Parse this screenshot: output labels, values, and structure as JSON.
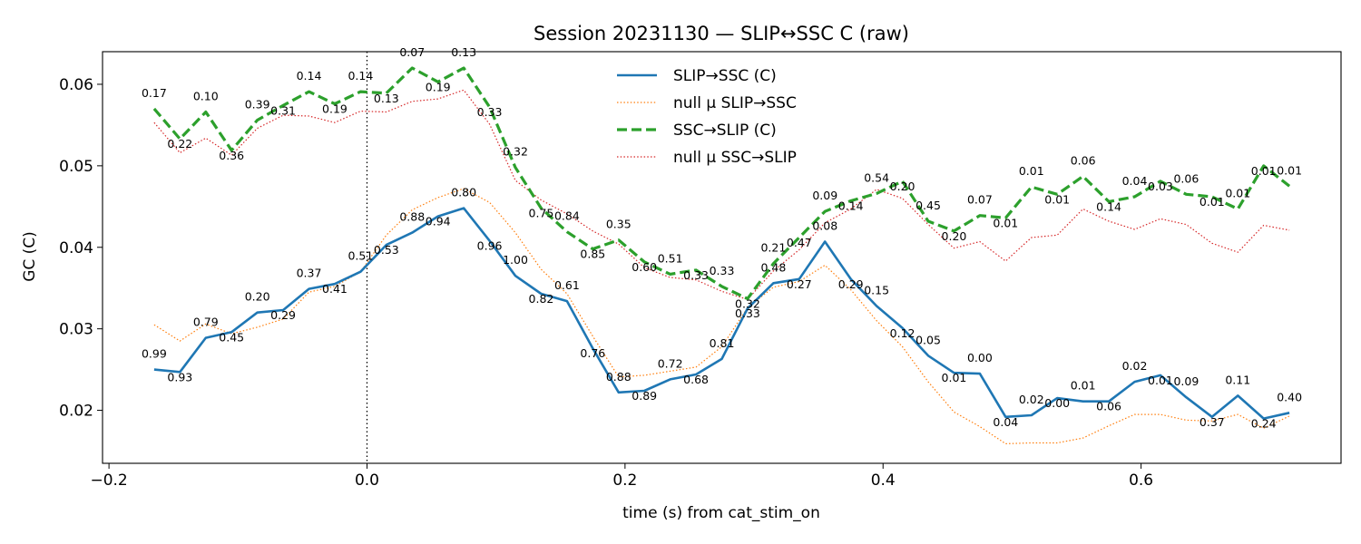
{
  "chart_data": {
    "type": "line",
    "title": "Session 20231130 — SLIP↔SSC C (raw)",
    "xlabel": "time (s) from cat_stim_on",
    "ylabel": "GC (C)",
    "xlim": [
      -0.205,
      0.755
    ],
    "ylim": [
      0.0135,
      0.064
    ],
    "xticks": [
      -0.2,
      0.0,
      0.2,
      0.4,
      0.6
    ],
    "xtick_labels": [
      "−0.2",
      "0.0",
      "0.2",
      "0.4",
      "0.6"
    ],
    "yticks": [
      0.02,
      0.03,
      0.04,
      0.05,
      0.06
    ],
    "ytick_labels": [
      "0.02",
      "0.03",
      "0.04",
      "0.05",
      "0.06"
    ],
    "event_line_x": 0.0,
    "grid": false,
    "legend_position": "top-center",
    "x": [
      -0.165,
      -0.145,
      -0.125,
      -0.105,
      -0.085,
      -0.065,
      -0.045,
      -0.025,
      -0.005,
      0.015,
      0.035,
      0.055,
      0.075,
      0.095,
      0.115,
      0.135,
      0.155,
      0.175,
      0.195,
      0.215,
      0.235,
      0.255,
      0.275,
      0.295,
      0.315,
      0.335,
      0.355,
      0.375,
      0.395,
      0.415,
      0.435,
      0.455,
      0.475,
      0.495,
      0.515,
      0.535,
      0.555,
      0.575,
      0.595,
      0.615,
      0.635,
      0.655,
      0.675,
      0.695,
      0.715
    ],
    "series": [
      {
        "name": "SLIP→SSC (C)",
        "color": "#1f77b4",
        "style": "solid",
        "values": [
          0.025,
          0.0247,
          0.0289,
          0.0296,
          0.032,
          0.0323,
          0.0349,
          0.0355,
          0.037,
          0.0403,
          0.0418,
          0.0438,
          0.0448,
          0.0408,
          0.0365,
          0.0343,
          0.0334,
          0.0276,
          0.0222,
          0.0224,
          0.0238,
          0.0244,
          0.0263,
          0.0325,
          0.0356,
          0.0361,
          0.0407,
          0.0361,
          0.0328,
          0.0301,
          0.0267,
          0.0246,
          0.0245,
          0.0192,
          0.0194,
          0.0215,
          0.0211,
          0.0211,
          0.0235,
          0.0243,
          0.0216,
          0.0192,
          0.0218,
          0.019,
          0.0197
        ]
      },
      {
        "name": "null μ SLIP→SSC",
        "color": "#ff7f0e",
        "style": "dotted",
        "values": [
          0.0305,
          0.0285,
          0.0306,
          0.0294,
          0.0302,
          0.0312,
          0.0345,
          0.0352,
          0.037,
          0.0415,
          0.0446,
          0.0461,
          0.0472,
          0.0455,
          0.0418,
          0.0373,
          0.0343,
          0.0291,
          0.0241,
          0.0243,
          0.0248,
          0.0253,
          0.0278,
          0.0326,
          0.0351,
          0.0358,
          0.0378,
          0.0348,
          0.031,
          0.0278,
          0.0235,
          0.0198,
          0.018,
          0.0159,
          0.016,
          0.016,
          0.0166,
          0.0181,
          0.0195,
          0.0195,
          0.0188,
          0.0187,
          0.0195,
          0.0178,
          0.0193
        ]
      },
      {
        "name": "SSC→SLIP (C)",
        "color": "#2ca02c",
        "style": "dashed",
        "values": [
          0.057,
          0.0533,
          0.0566,
          0.0519,
          0.0556,
          0.0574,
          0.0591,
          0.0576,
          0.0591,
          0.0589,
          0.062,
          0.0603,
          0.062,
          0.0572,
          0.0498,
          0.0448,
          0.0419,
          0.0398,
          0.0409,
          0.0382,
          0.0367,
          0.0372,
          0.0352,
          0.0337,
          0.038,
          0.0412,
          0.0444,
          0.0457,
          0.0466,
          0.0481,
          0.0432,
          0.042,
          0.0439,
          0.0436,
          0.0474,
          0.0465,
          0.0487,
          0.0456,
          0.0462,
          0.0481,
          0.0465,
          0.0462,
          0.0447,
          0.05,
          0.0475
        ]
      },
      {
        "name": "null μ SSC→SLIP",
        "color": "#d62728",
        "style": "dotted",
        "values": [
          0.0553,
          0.0516,
          0.0534,
          0.0513,
          0.0546,
          0.0562,
          0.0561,
          0.0553,
          0.0567,
          0.0566,
          0.0579,
          0.0582,
          0.0593,
          0.0551,
          0.0482,
          0.0458,
          0.0441,
          0.042,
          0.0404,
          0.0375,
          0.0363,
          0.036,
          0.0346,
          0.0336,
          0.0371,
          0.0397,
          0.043,
          0.0447,
          0.0471,
          0.046,
          0.0428,
          0.0399,
          0.0407,
          0.0383,
          0.0412,
          0.0415,
          0.0447,
          0.0432,
          0.0422,
          0.0435,
          0.0428,
          0.0405,
          0.0394,
          0.0427,
          0.0421
        ]
      }
    ],
    "annotations_slip_to_ssc": [
      "0.99",
      "0.93",
      "0.79",
      "0.45",
      "0.20",
      "0.29",
      "0.37",
      "0.41",
      "0.51",
      "0.53",
      "0.88",
      "0.94",
      "0.80",
      "0.96",
      "1.00",
      "0.82",
      "0.61",
      "0.76",
      "0.88",
      "0.89",
      "0.72",
      "0.68",
      "0.81",
      "0.33",
      "0.48",
      "0.27",
      "0.08",
      "0.29",
      "0.15",
      "0.12",
      "0.05",
      "0.01",
      "0.00",
      "0.04",
      "0.02",
      "0.00",
      "0.01",
      "0.06",
      "0.02",
      "0.01",
      "0.09",
      "0.37",
      "0.11",
      "0.24",
      "0.40"
    ],
    "annotations_ssc_to_slip": [
      "0.17",
      "0.22",
      "0.10",
      "0.36",
      "0.39",
      "0.31",
      "0.14",
      "0.19",
      "0.14",
      "0.13",
      "0.07",
      "0.19",
      "0.13",
      "0.33",
      "0.32",
      "0.75",
      "0.84",
      "0.85",
      "0.35",
      "0.60",
      "0.51",
      "0.33",
      "0.33",
      "0.32",
      "0.21",
      "0.47",
      "0.09",
      "0.14",
      "0.54",
      "0.20",
      "0.45",
      "0.20",
      "0.07",
      "0.01",
      "0.01",
      "0.01",
      "0.06",
      "0.14",
      "0.04",
      "0.03",
      "0.06",
      "0.01",
      "0.01",
      "0.01",
      "0.01"
    ]
  }
}
